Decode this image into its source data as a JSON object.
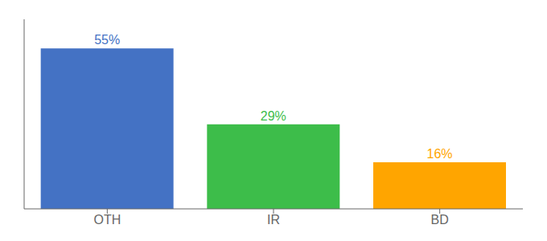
{
  "chart_data": {
    "type": "bar",
    "categories": [
      "OTH",
      "IR",
      "BD"
    ],
    "values": [
      55,
      29,
      16
    ],
    "value_labels": [
      "55%",
      "29%",
      "16%"
    ],
    "colors": [
      "#4472C4",
      "#3DBD4A",
      "#FFA500"
    ],
    "ylim": [
      0,
      65
    ],
    "data_labels": true,
    "grid": false,
    "tick_labels": "x"
  }
}
